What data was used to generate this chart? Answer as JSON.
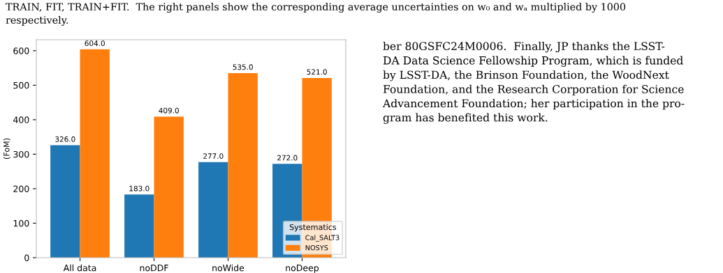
{
  "chart_data": {
    "type": "bar",
    "ylabel": "(FoM)",
    "legend_title": "Systematics",
    "legend": "bottom right",
    "categories": [
      "All data",
      "noDDF",
      "noWide",
      "noDeep"
    ],
    "series": [
      {
        "name": "Cal_SALT3",
        "color": "#1f77b4",
        "values": [
          326,
          183,
          277,
          272
        ],
        "value_labels": [
          "326.0",
          "183.0",
          "277.0",
          "272.0"
        ]
      },
      {
        "name": "NOSYS",
        "color": "#ff7f0e",
        "values": [
          604,
          409,
          535,
          521
        ],
        "value_labels": [
          "604.0",
          "409.0",
          "535.0",
          "521.0"
        ]
      }
    ],
    "ylim": [
      0,
      632
    ],
    "yticks": [
      0,
      100,
      200,
      300,
      400,
      500,
      600
    ],
    "grid": false,
    "annotations": [
      "TRAIN, FIT, TRAIN+FIT.  The right panels show the corresponding average uncertainties on w₀ and wₐ multiplied by 1000\nrespectively.",
      "ber 80GSFC24M0006.  Finally, JP thanks the LSST-\nDA Data Science Fellowship Program, which is funded\nby LSST-DA, the Brinson Foundation, the WoodNext\nFoundation, and the Research Corporation for Science\nAdvancement Foundation; her participation in the pro-\ngram has benefited this work."
    ]
  }
}
